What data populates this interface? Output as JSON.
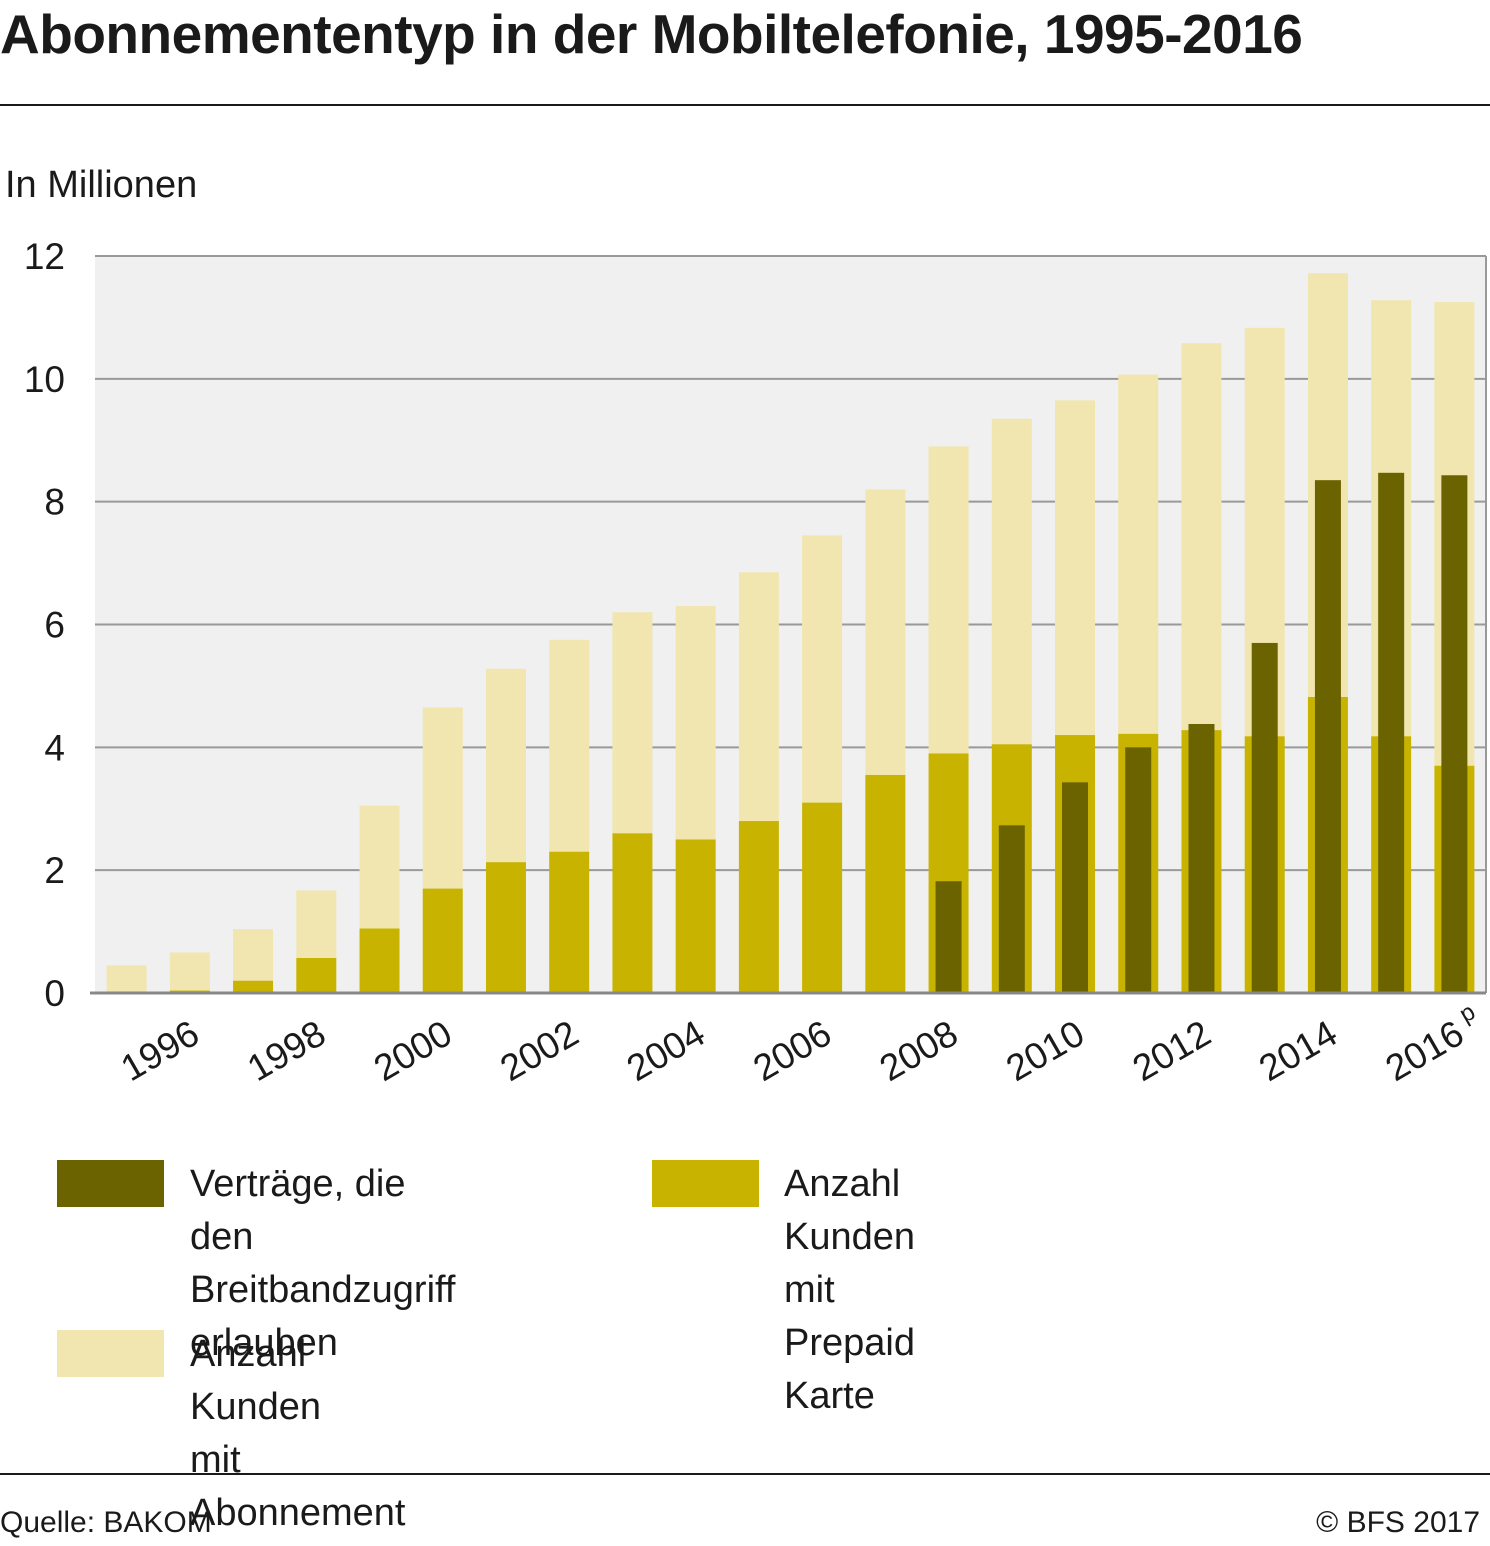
{
  "title": "Abonnemententyp in der Mobiltelefonie, 1995-2016",
  "unit_label": "In Millionen",
  "source": "Quelle: BAKOM",
  "copyright": "© BFS 2017",
  "colors": {
    "plot_bg": "#f0f0f0",
    "grid": "#999999",
    "abonnement": "#f1e6b0",
    "prepaid": "#c8b400",
    "breitband": "#6b6300",
    "text": "#1a1a1a"
  },
  "legend": [
    {
      "series": "breitband",
      "label": "Verträge,  die\nden Breitbandzugriff\nerlauben"
    },
    {
      "series": "prepaid",
      "label": "Anzahl Kunden\nmit Prepaid Karte"
    },
    {
      "series": "abonnement",
      "label": "Anzahl Kunden\nmit Abonnement"
    }
  ],
  "chart_data": {
    "type": "bar",
    "title": "Abonnemententyp in der Mobiltelefonie, 1995-2016",
    "ylabel": "In Millionen",
    "xlabel": "",
    "ylim": [
      0,
      12
    ],
    "yticks": [
      0,
      2,
      4,
      6,
      8,
      10,
      12
    ],
    "categories": [
      "1995",
      "1996",
      "1997",
      "1998",
      "1999",
      "2000",
      "2001",
      "2002",
      "2003",
      "2004",
      "2005",
      "2006",
      "2007",
      "2008",
      "2009",
      "2010",
      "2011",
      "2012",
      "2013",
      "2014",
      "2015",
      "2016"
    ],
    "xtick_labels": [
      {
        "category": "1996",
        "label": "1996"
      },
      {
        "category": "1998",
        "label": "1998"
      },
      {
        "category": "2000",
        "label": "2000"
      },
      {
        "category": "2002",
        "label": "2002"
      },
      {
        "category": "2004",
        "label": "2004"
      },
      {
        "category": "2006",
        "label": "2006"
      },
      {
        "category": "2008",
        "label": "2008"
      },
      {
        "category": "2010",
        "label": "2010"
      },
      {
        "category": "2012",
        "label": "2012"
      },
      {
        "category": "2014",
        "label": "2014"
      },
      {
        "category": "2016",
        "label": "2016",
        "superscript": "p"
      }
    ],
    "series": [
      {
        "name": "Anzahl Kunden mit Abonnement",
        "key": "abonnement",
        "stacked_on": "prepaid",
        "values": [
          0.45,
          0.62,
          0.84,
          1.1,
          2.0,
          2.95,
          3.15,
          3.45,
          3.6,
          3.8,
          4.05,
          4.35,
          4.65,
          5.0,
          5.3,
          5.45,
          5.85,
          6.3,
          6.65,
          6.9,
          7.1,
          7.55
        ]
      },
      {
        "name": "Anzahl Kunden mit Prepaid Karte",
        "key": "prepaid",
        "values": [
          0.0,
          0.04,
          0.2,
          0.57,
          1.05,
          1.7,
          2.13,
          2.3,
          2.6,
          2.5,
          2.8,
          3.1,
          3.55,
          3.9,
          4.05,
          4.2,
          4.22,
          4.28,
          4.18,
          4.82,
          4.18,
          3.7
        ]
      },
      {
        "name": "Verträge, die den Breitbandzugriff erlauben",
        "key": "breitband",
        "overlay": true,
        "values": [
          null,
          null,
          null,
          null,
          null,
          null,
          null,
          null,
          null,
          null,
          null,
          null,
          null,
          1.82,
          2.73,
          3.43,
          4.0,
          4.38,
          5.7,
          8.35,
          8.47,
          8.43
        ]
      }
    ],
    "grid": true,
    "legend_position": "bottom"
  }
}
